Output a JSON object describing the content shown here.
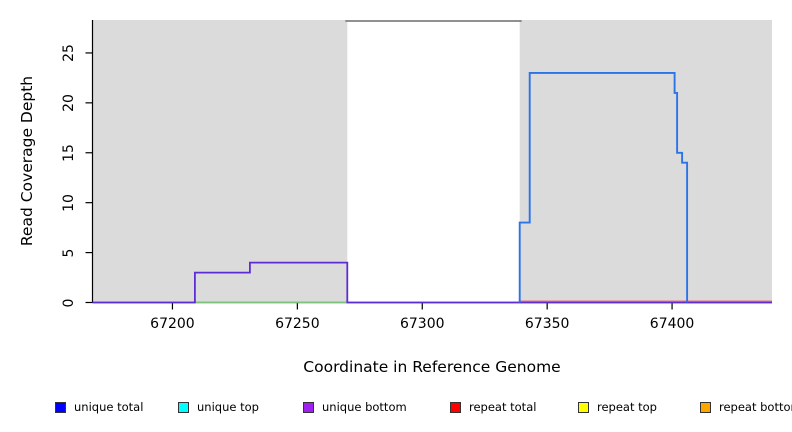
{
  "chart_data": {
    "type": "line",
    "title": "",
    "xlabel": "Coordinate in Reference Genome",
    "ylabel": "Read Coverage Depth",
    "xlim": [
      67168,
      67440
    ],
    "ylim": [
      0,
      28.3
    ],
    "grid": false,
    "x_ticks": [
      67200,
      67250,
      67300,
      67350,
      67400
    ],
    "y_ticks": [
      0,
      5,
      10,
      15,
      20,
      25
    ],
    "panel_color": "#ffffff",
    "shaded_color": "#dbdbdb",
    "axis_color": "#000000",
    "shaded_regions": [
      {
        "name": "shaded-region-left",
        "x0": 67168,
        "x1": 67270
      },
      {
        "name": "shaded-region-right",
        "x0": 67339,
        "x1": 67440
      }
    ],
    "top_gap_line": {
      "x0": 67270,
      "x1": 67339,
      "color": "#808080"
    },
    "series": [
      {
        "name": "baseline-green",
        "color": "#7ec47e",
        "width": 1.5,
        "points": [
          [
            67168,
            0
          ],
          [
            67270,
            0
          ]
        ]
      },
      {
        "name": "unique-bottom",
        "color": "#5c2dd5",
        "width": 1.8,
        "points": [
          [
            67168,
            0
          ],
          [
            67209,
            0
          ],
          [
            67209,
            3
          ],
          [
            67231,
            3
          ],
          [
            67231,
            4
          ],
          [
            67270,
            4
          ],
          [
            67270,
            0
          ],
          [
            67440,
            0
          ]
        ]
      },
      {
        "name": "repeat-total",
        "color": "#ef4b5c",
        "width": 1.4,
        "points": [
          [
            67339,
            0.12
          ],
          [
            67440,
            0.12
          ]
        ]
      },
      {
        "name": "unique-total",
        "color": "#2b74e8",
        "width": 1.9,
        "points": [
          [
            67339,
            0
          ],
          [
            67339,
            8
          ],
          [
            67343,
            8
          ],
          [
            67343,
            23
          ],
          [
            67401,
            23
          ],
          [
            67401,
            21
          ],
          [
            67402,
            21
          ],
          [
            67402,
            15
          ],
          [
            67404,
            15
          ],
          [
            67404,
            14
          ],
          [
            67406,
            14
          ],
          [
            67406,
            0
          ]
        ]
      }
    ],
    "legend": {
      "position": "bottom",
      "items": [
        {
          "label": "unique total",
          "color": "#0000ff"
        },
        {
          "label": "unique top",
          "color": "#00ffff"
        },
        {
          "label": "unique bottom",
          "color": "#a020f0"
        },
        {
          "label": "repeat total",
          "color": "#ff0000"
        },
        {
          "label": "repeat top",
          "color": "#ffff00"
        },
        {
          "label": "repeat bottom",
          "color": "#ffa500"
        }
      ]
    }
  }
}
